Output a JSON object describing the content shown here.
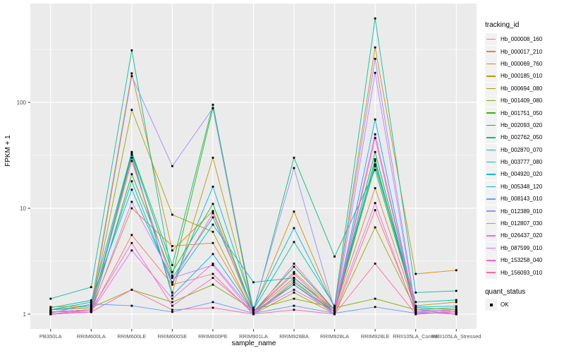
{
  "chart_data": {
    "type": "line",
    "title": "",
    "xlabel": "sample_name",
    "ylabel": "FPKM + 1",
    "y_scale": "log10",
    "y_ticks": [
      1,
      10,
      100
    ],
    "ylim": [
      1,
      795
    ],
    "grid": true,
    "legend_position": "right",
    "panel_bg": "#EBEBEB",
    "grid_color": "#FFFFFF",
    "point_color": "#000000",
    "point_shape": "square",
    "categories": [
      "PB350LA",
      "RRIM600LA",
      "RRIM600LE",
      "RRIM600SE",
      "RRIM600PE",
      "RRIM901LA",
      "RRIM928BA",
      "RRIM928LA",
      "RRIM928LE",
      "RRII105LA_Control",
      "RRII105LA_Stressed"
    ],
    "series": [
      {
        "name": "Hb_000008_160",
        "color": "#F8766D",
        "values": [
          1.0,
          1.05,
          5.6,
          1.9,
          2.4,
          1.0,
          1.9,
          1.0,
          9.6,
          1.05,
          1.0
        ]
      },
      {
        "name": "Hb_000017_210",
        "color": "#EA8331",
        "values": [
          1.05,
          1.1,
          10,
          4.4,
          4.7,
          1.05,
          2.5,
          1.1,
          15.5,
          1.1,
          1.05
        ]
      },
      {
        "name": "Hb_000069_760",
        "color": "#D89000",
        "values": [
          1.17,
          1.2,
          188,
          4.0,
          9.4,
          1.1,
          9.3,
          1.15,
          330,
          2.4,
          2.6
        ]
      },
      {
        "name": "Hb_000185_010",
        "color": "#C09B00",
        "values": [
          1.1,
          1.15,
          30,
          1.6,
          30,
          1.05,
          2.2,
          1.05,
          25,
          1.2,
          1.3
        ]
      },
      {
        "name": "Hb_000694_080",
        "color": "#A3A500",
        "values": [
          1.05,
          1.1,
          85,
          8.7,
          6.0,
          1.0,
          1.6,
          1.0,
          6.6,
          1.1,
          1.05
        ]
      },
      {
        "name": "Hb_001409_080",
        "color": "#7CAE00",
        "values": [
          1.1,
          1.15,
          1.7,
          1.3,
          1.9,
          1.1,
          1.4,
          1.15,
          1.4,
          1.1,
          1.15
        ]
      },
      {
        "name": "Hb_001751_050",
        "color": "#39B600",
        "values": [
          1.0,
          1.05,
          21,
          2.3,
          88,
          1.0,
          2.0,
          1.05,
          29,
          1.05,
          1.0
        ]
      },
      {
        "name": "Hb_002093_020",
        "color": "#00BB4E",
        "values": [
          1.05,
          1.1,
          33,
          2.5,
          11,
          1.05,
          2.8,
          1.1,
          34,
          1.1,
          1.05
        ]
      },
      {
        "name": "Hb_002762_050",
        "color": "#00BF7D",
        "values": [
          1.1,
          1.3,
          34,
          2.9,
          95,
          1.05,
          30,
          3.5,
          23,
          1.15,
          1.1
        ]
      },
      {
        "name": "Hb_002870_070",
        "color": "#00C1A3",
        "values": [
          1.4,
          1.8,
          310,
          2.2,
          8.2,
          1.1,
          4.8,
          1.2,
          620,
          1.6,
          1.66
        ]
      },
      {
        "name": "Hb_003777_080",
        "color": "#00BFC4",
        "values": [
          1.15,
          1.35,
          15,
          2.0,
          7.0,
          2.0,
          2.2,
          1.1,
          26,
          1.3,
          1.36
        ]
      },
      {
        "name": "Hb_004920_020",
        "color": "#00BAE0",
        "values": [
          1.1,
          1.2,
          18,
          1.9,
          16,
          1.15,
          6.5,
          1.15,
          28,
          1.17,
          1.19
        ]
      },
      {
        "name": "Hb_005348_120",
        "color": "#00B0F6",
        "values": [
          1.05,
          1.1,
          32,
          1.5,
          3.7,
          1.05,
          1.9,
          1.05,
          69,
          1.05,
          1.1
        ]
      },
      {
        "name": "Hb_008143_010",
        "color": "#619CFF",
        "values": [
          1.02,
          1.25,
          1.2,
          1.05,
          1.3,
          1.02,
          1.2,
          1.02,
          1.17,
          1.02,
          1.05
        ]
      },
      {
        "name": "Hb_012389_010",
        "color": "#9590FF",
        "values": [
          1.05,
          1.1,
          177,
          25,
          88,
          1.1,
          24,
          1.1,
          258,
          1.1,
          1.05
        ]
      },
      {
        "name": "Hb_012807_030",
        "color": "#C77CFF",
        "values": [
          1.0,
          1.05,
          11.5,
          2.2,
          2.9,
          1.0,
          2.1,
          1.0,
          190,
          1.05,
          1.0
        ]
      },
      {
        "name": "Hb_026437_020",
        "color": "#E76BF3",
        "values": [
          1.05,
          1.05,
          4.0,
          1.4,
          3.0,
          1.05,
          1.7,
          1.05,
          11.2,
          1.0,
          1.05
        ]
      },
      {
        "name": "Hb_087599_010",
        "color": "#FA62DB",
        "values": [
          1.0,
          1.1,
          28,
          2.0,
          9.0,
          1.0,
          3.0,
          1.1,
          50,
          1.1,
          1.0
        ]
      },
      {
        "name": "Hb_153258_040",
        "color": "#FF61CC",
        "values": [
          1.05,
          1.1,
          4.7,
          1.2,
          2.2,
          1.05,
          2.4,
          1.05,
          46,
          1.05,
          1.1
        ]
      },
      {
        "name": "Hb_156093_010",
        "color": "#FF67A4",
        "values": [
          1.0,
          1.05,
          1.7,
          1.1,
          1.15,
          1.0,
          1.1,
          1.0,
          3.0,
          1.0,
          1.05
        ]
      }
    ]
  },
  "legend": {
    "tracking_title": "tracking_id",
    "quant_title": "quant_status",
    "quant_items": [
      {
        "label": "OK",
        "marker": "black-square"
      }
    ]
  }
}
